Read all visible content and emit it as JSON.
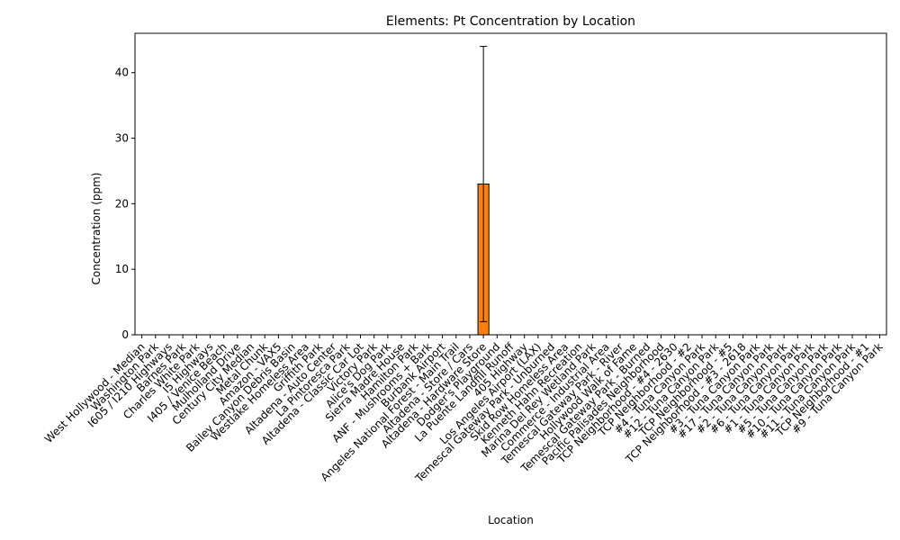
{
  "chart_data": {
    "type": "bar",
    "title": "Elements: Pt Concentration by Location",
    "xlabel": "Location",
    "ylabel": "Concentration (ppm)",
    "ylim": [
      0,
      46
    ],
    "yticks": [
      0,
      10,
      20,
      30,
      40
    ],
    "bar_color": "#ff7f0e",
    "edge_color": "#000000",
    "grid": false,
    "categories": [
      "West Hollywood - Median",
      "Washington Park",
      "I605 / I210 Highways",
      "Barnes Park",
      "Charles White Park",
      "I5 Highways",
      "I405 / Venice Beach",
      "Mulholland Drive",
      "Century City Median",
      "Metal Chunk",
      "Amazon - VAX5",
      "Bailey Canyon Debris Basin",
      "Westlake Homeless Area",
      "Griffith Park",
      "Altadena - Auto Center",
      "La Pintoresca Park",
      "Altadena - Classic Car Lot",
      "Victory Park",
      "Alice's Dog Park",
      "Sierra Madre House",
      "Hamilton Park",
      "ANF - Mushrooms + Bark",
      "Burbank Airport",
      "Angeles National Forest - Main Trail",
      "Altadena - Store / Cars",
      "Altadena - Hardware Store",
      "Dodger's Playground",
      "La Puente Landfill Runoff",
      "405 Highway",
      "Los Angeles Airport (LAX)",
      "Temescal Gateway Park - Unburned",
      "Skid Row Homeless Area",
      "Kenneth Hahn Recreation",
      "Marina Del Rey Wetland Park",
      "Commerce - Industrial Area",
      "Temescal Gateway Park - River",
      "Hollywood Walk of Fame",
      "Temescal Gateway Park - Burned",
      "Pacific Palisades Neighborhood",
      "TCP Neighborhood - #4 - 2630",
      "TCP Neighborhood - #2",
      "#4 - Tuna Canyon Park",
      "#12 - Tuna Canyon Park",
      "TCP Neighborhood - #5",
      "TCP Neighborhood - #3 - 2618",
      "#3 - Tuna Canyon Park",
      "#17 - Tuna Canyon Park",
      "#2 - Tuna Canyon Park",
      "#6 - Tuna Canyon Park",
      "#1 - Tuna Canyon Park",
      "#5 - Tuna Canyon Park",
      "#10 - Tuna Canyon Park",
      "#11 - Tuna Canyon Park",
      "TCP Neighborhood - #1",
      "#9 - Tuna Canyon Park"
    ],
    "values": [
      0,
      0,
      0,
      0,
      0,
      0,
      0,
      0,
      0,
      0,
      0,
      0,
      0,
      0,
      0,
      0,
      0,
      0,
      0,
      0,
      0,
      0,
      0,
      0,
      0,
      23,
      0,
      0,
      0,
      0,
      0,
      0,
      0,
      0,
      0,
      0,
      0,
      0,
      0,
      0,
      0,
      0,
      0,
      0,
      0,
      0,
      0,
      0,
      0,
      0,
      0,
      0,
      0,
      0,
      0
    ],
    "error_high": [
      0,
      0,
      0,
      0,
      0,
      0,
      0,
      0,
      0,
      0,
      0,
      0,
      0,
      0,
      0,
      0,
      0,
      0,
      0,
      0,
      0,
      0,
      0,
      0,
      0,
      44,
      0,
      0,
      0,
      0,
      0,
      0,
      0,
      0,
      0,
      0,
      0,
      0,
      0,
      0,
      0,
      0,
      0,
      0,
      0,
      0,
      0,
      0,
      0,
      0,
      0,
      0,
      0,
      0,
      0
    ],
    "error_low": [
      0,
      0,
      0,
      0,
      0,
      0,
      0,
      0,
      0,
      0,
      0,
      0,
      0,
      0,
      0,
      0,
      0,
      0,
      0,
      0,
      0,
      0,
      0,
      0,
      0,
      2,
      0,
      0,
      0,
      0,
      0,
      0,
      0,
      0,
      0,
      0,
      0,
      0,
      0,
      0,
      0,
      0,
      0,
      0,
      0,
      0,
      0,
      0,
      0,
      0,
      0,
      0,
      0,
      0,
      0
    ]
  }
}
